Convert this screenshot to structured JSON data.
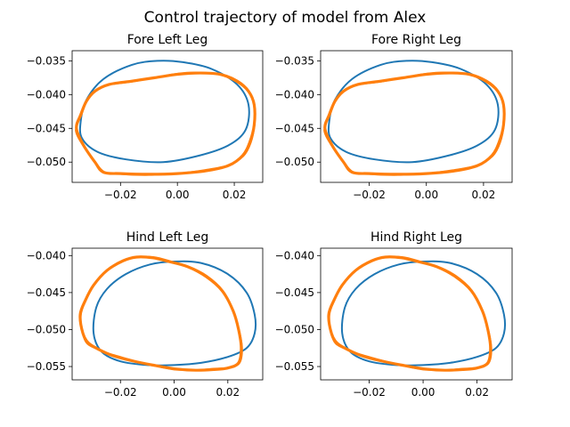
{
  "title": "Control trajectory of model from Alex",
  "colors": {
    "reference": "#1f77b4",
    "actual": "#ff7f0e"
  },
  "chart_data": [
    {
      "type": "line",
      "title": "Fore Left Leg",
      "xlim": [
        -0.037,
        0.03
      ],
      "ylim": [
        -0.053,
        -0.0335
      ],
      "xticks": [
        -0.02,
        0.0,
        0.02
      ],
      "xtick_labels": [
        "−0.02",
        "0.00",
        "0.02"
      ],
      "yticks": [
        -0.035,
        -0.04,
        -0.045,
        -0.05
      ],
      "ytick_labels": [
        "−0.035",
        "−0.040",
        "−0.045",
        "−0.050"
      ],
      "series": [
        {
          "role": "reference",
          "x": [
            -0.034,
            -0.032,
            -0.026,
            -0.016,
            -0.007,
            0.002,
            0.012,
            0.021,
            0.025,
            0.024,
            0.018,
            0.008,
            -0.005,
            -0.018,
            -0.028,
            -0.0335,
            -0.034
          ],
          "y": [
            -0.044,
            -0.0408,
            -0.0377,
            -0.0356,
            -0.035,
            -0.0352,
            -0.0362,
            -0.0385,
            -0.0415,
            -0.0452,
            -0.0475,
            -0.049,
            -0.05,
            -0.0496,
            -0.0485,
            -0.0465,
            -0.044
          ]
        },
        {
          "role": "actual",
          "x": [
            -0.0355,
            -0.034,
            -0.032,
            -0.029,
            -0.024,
            -0.016,
            -0.008,
            0.0,
            0.008,
            0.015,
            0.021,
            0.025,
            0.027,
            0.027,
            0.0255,
            0.023,
            0.018,
            0.01,
            0.0,
            -0.01,
            -0.02,
            -0.026,
            -0.029,
            -0.033,
            -0.0355
          ],
          "y": [
            -0.045,
            -0.043,
            -0.041,
            -0.0395,
            -0.0385,
            -0.038,
            -0.0375,
            -0.037,
            -0.0368,
            -0.037,
            -0.038,
            -0.0395,
            -0.0415,
            -0.0445,
            -0.047,
            -0.049,
            -0.0505,
            -0.0513,
            -0.0517,
            -0.0518,
            -0.0517,
            -0.0515,
            -0.05,
            -0.0475,
            -0.045
          ]
        }
      ]
    },
    {
      "type": "line",
      "title": "Fore Right Leg",
      "xlim": [
        -0.037,
        0.03
      ],
      "ylim": [
        -0.053,
        -0.0335
      ],
      "xticks": [
        -0.02,
        0.0,
        0.02
      ],
      "xtick_labels": [
        "−0.02",
        "0.00",
        "0.02"
      ],
      "yticks": [
        -0.035,
        -0.04,
        -0.045,
        -0.05
      ],
      "ytick_labels": [
        "−0.035",
        "−0.040",
        "−0.045",
        "−0.050"
      ],
      "series": [
        {
          "role": "reference",
          "x": [
            -0.034,
            -0.032,
            -0.026,
            -0.016,
            -0.007,
            0.002,
            0.012,
            0.021,
            0.025,
            0.024,
            0.018,
            0.008,
            -0.005,
            -0.018,
            -0.028,
            -0.0335,
            -0.034
          ],
          "y": [
            -0.044,
            -0.0408,
            -0.0377,
            -0.0356,
            -0.035,
            -0.0352,
            -0.0362,
            -0.0385,
            -0.0415,
            -0.0452,
            -0.0475,
            -0.049,
            -0.05,
            -0.0496,
            -0.0485,
            -0.0465,
            -0.044
          ]
        },
        {
          "role": "actual",
          "x": [
            -0.0355,
            -0.034,
            -0.032,
            -0.029,
            -0.024,
            -0.016,
            -0.008,
            0.0,
            0.008,
            0.015,
            0.021,
            0.025,
            0.027,
            0.027,
            0.0255,
            0.023,
            0.018,
            0.01,
            0.0,
            -0.01,
            -0.02,
            -0.026,
            -0.029,
            -0.033,
            -0.0355
          ],
          "y": [
            -0.045,
            -0.043,
            -0.041,
            -0.0395,
            -0.0385,
            -0.038,
            -0.0375,
            -0.037,
            -0.0368,
            -0.037,
            -0.038,
            -0.0395,
            -0.0415,
            -0.0445,
            -0.047,
            -0.049,
            -0.0505,
            -0.0513,
            -0.0517,
            -0.0518,
            -0.0517,
            -0.0515,
            -0.05,
            -0.0475,
            -0.045
          ]
        }
      ]
    },
    {
      "type": "line",
      "title": "Hind Left Leg",
      "xlim": [
        -0.038,
        0.033
      ],
      "ylim": [
        -0.0568,
        -0.039
      ],
      "xticks": [
        -0.02,
        0.0,
        0.02
      ],
      "xtick_labels": [
        "−0.02",
        "0.00",
        "0.02"
      ],
      "yticks": [
        -0.04,
        -0.045,
        -0.05,
        -0.055
      ],
      "ytick_labels": [
        "−0.040",
        "−0.045",
        "−0.050",
        "−0.055"
      ],
      "series": [
        {
          "role": "reference",
          "x": [
            -0.029,
            -0.025,
            -0.018,
            -0.009,
            0.0,
            0.01,
            0.02,
            0.027,
            0.03,
            0.03,
            0.027,
            0.02,
            0.01,
            0.0,
            -0.01,
            -0.02,
            -0.027,
            -0.03,
            -0.029
          ],
          "y": [
            -0.047,
            -0.0445,
            -0.0425,
            -0.0412,
            -0.0408,
            -0.041,
            -0.0425,
            -0.045,
            -0.048,
            -0.0505,
            -0.0525,
            -0.0537,
            -0.0545,
            -0.0548,
            -0.0548,
            -0.0543,
            -0.053,
            -0.0505,
            -0.047
          ]
        },
        {
          "role": "actual",
          "x": [
            -0.034,
            -0.035,
            -0.033,
            -0.03,
            -0.025,
            -0.019,
            -0.014,
            -0.008,
            -0.002,
            0.005,
            0.012,
            0.018,
            0.022,
            0.024,
            0.025,
            0.024,
            0.02,
            0.015,
            0.008,
            0.0,
            -0.008,
            -0.016,
            -0.023,
            -0.028,
            -0.032,
            -0.034
          ],
          "y": [
            -0.0505,
            -0.048,
            -0.046,
            -0.044,
            -0.042,
            -0.0407,
            -0.0402,
            -0.0403,
            -0.0408,
            -0.0415,
            -0.0428,
            -0.0448,
            -0.0475,
            -0.05,
            -0.0525,
            -0.0545,
            -0.0552,
            -0.0554,
            -0.0555,
            -0.0553,
            -0.0548,
            -0.0542,
            -0.0535,
            -0.0527,
            -0.0518,
            -0.0505
          ]
        }
      ]
    },
    {
      "type": "line",
      "title": "Hind Right Leg",
      "xlim": [
        -0.038,
        0.033
      ],
      "ylim": [
        -0.0568,
        -0.039
      ],
      "xticks": [
        -0.02,
        0.0,
        0.02
      ],
      "xtick_labels": [
        "−0.02",
        "0.00",
        "0.02"
      ],
      "yticks": [
        -0.04,
        -0.045,
        -0.05,
        -0.055
      ],
      "ytick_labels": [
        "−0.040",
        "−0.045",
        "−0.050",
        "−0.055"
      ],
      "series": [
        {
          "role": "reference",
          "x": [
            -0.029,
            -0.025,
            -0.018,
            -0.009,
            0.0,
            0.01,
            0.02,
            0.027,
            0.03,
            0.03,
            0.027,
            0.02,
            0.01,
            0.0,
            -0.01,
            -0.02,
            -0.027,
            -0.03,
            -0.029
          ],
          "y": [
            -0.047,
            -0.0445,
            -0.0425,
            -0.0412,
            -0.0408,
            -0.041,
            -0.0425,
            -0.045,
            -0.048,
            -0.0505,
            -0.0525,
            -0.0537,
            -0.0545,
            -0.0548,
            -0.0548,
            -0.0543,
            -0.053,
            -0.0505,
            -0.047
          ]
        },
        {
          "role": "actual",
          "x": [
            -0.034,
            -0.035,
            -0.033,
            -0.03,
            -0.025,
            -0.019,
            -0.014,
            -0.008,
            -0.002,
            0.005,
            0.012,
            0.018,
            0.022,
            0.024,
            0.025,
            0.024,
            0.02,
            0.015,
            0.008,
            0.0,
            -0.008,
            -0.016,
            -0.023,
            -0.028,
            -0.032,
            -0.034
          ],
          "y": [
            -0.0505,
            -0.048,
            -0.046,
            -0.044,
            -0.042,
            -0.0407,
            -0.0402,
            -0.0403,
            -0.0408,
            -0.0415,
            -0.0428,
            -0.0448,
            -0.0475,
            -0.05,
            -0.0525,
            -0.0545,
            -0.0552,
            -0.0554,
            -0.0555,
            -0.0553,
            -0.0548,
            -0.0542,
            -0.0535,
            -0.0527,
            -0.0518,
            -0.0505
          ]
        }
      ]
    }
  ]
}
